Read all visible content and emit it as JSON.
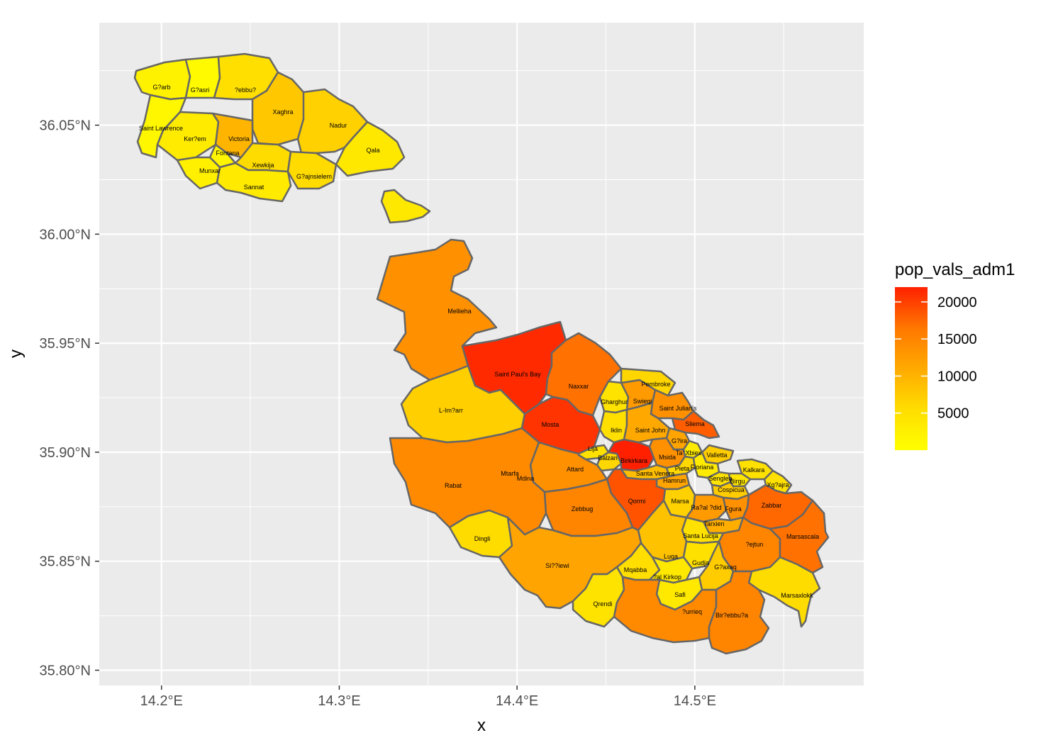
{
  "chart_data": {
    "type": "choropleth",
    "legend": {
      "title": "pop_vals_adm1",
      "breaks": [
        5000,
        10000,
        15000,
        20000
      ],
      "break_labels": [
        "5000",
        "10000",
        "15000",
        "20000"
      ],
      "range": [
        0,
        22000
      ],
      "low_color": "#FFFF00",
      "high_color": "#FF2000",
      "placement": "right"
    },
    "x_axis": {
      "title": "x",
      "ticks": [
        14.2,
        14.3,
        14.4,
        14.5
      ],
      "tick_labels": [
        "14.2°E",
        "14.3°E",
        "14.4°E",
        "14.5°E"
      ],
      "range": [
        14.165,
        14.595
      ]
    },
    "y_axis": {
      "title": "y",
      "ticks": [
        35.8,
        35.85,
        35.9,
        35.95,
        36.0,
        36.05
      ],
      "tick_labels": [
        "35.80°N",
        "35.85°N",
        "35.90°N",
        "35.95°N",
        "36.00°N",
        "36.05°N"
      ],
      "range": [
        35.793,
        36.097
      ]
    },
    "panel_background": "#EBEBEB",
    "grid": true,
    "regions": [
      {
        "name": "G?arb",
        "value": 1300
      },
      {
        "name": "G?asri",
        "value": 500
      },
      {
        "name": "?ebbu?",
        "value": 3200
      },
      {
        "name": "Xaghra",
        "value": 5500
      },
      {
        "name": "Nadur",
        "value": 4500
      },
      {
        "name": "Qala",
        "value": 2300
      },
      {
        "name": "Saint Lawrence",
        "value": 800
      },
      {
        "name": "Ker?em",
        "value": 2000
      },
      {
        "name": "Victoria",
        "value": 7300
      },
      {
        "name": "Fontana",
        "value": 1000
      },
      {
        "name": "Munxar",
        "value": 1500
      },
      {
        "name": "Xewkija",
        "value": 3500
      },
      {
        "name": "G?ajnsielem",
        "value": 3600
      },
      {
        "name": "Sannat",
        "value": 2100
      },
      {
        "name": "Mellieha",
        "value": 11000
      },
      {
        "name": "Saint Paul's Bay",
        "value": 21000
      },
      {
        "name": "Naxxar",
        "value": 14000
      },
      {
        "name": "L-Im?arr",
        "value": 4700
      },
      {
        "name": "Mosta",
        "value": 20000
      },
      {
        "name": "Gharghur",
        "value": 2800
      },
      {
        "name": "Swieqi",
        "value": 10000
      },
      {
        "name": "Pembroke",
        "value": 4000
      },
      {
        "name": "Saint Julian's",
        "value": 11000
      },
      {
        "name": "Iklin",
        "value": 3200
      },
      {
        "name": "Saint John",
        "value": 8500
      },
      {
        "name": "Sliema",
        "value": 16000
      },
      {
        "name": "Lija",
        "value": 3000
      },
      {
        "name": "Balzan",
        "value": 3900
      },
      {
        "name": "Birkirkara",
        "value": 22000
      },
      {
        "name": "G?ira",
        "value": 9000
      },
      {
        "name": "Ta' Xbiex",
        "value": 2000
      },
      {
        "name": "Msida",
        "value": 11000
      },
      {
        "name": "Valletta",
        "value": 5000
      },
      {
        "name": "Santa Venera",
        "value": 6500
      },
      {
        "name": "Pieta",
        "value": 3800
      },
      {
        "name": "Floriana",
        "value": 2000
      },
      {
        "name": "Hamrun",
        "value": 9000
      },
      {
        "name": "Kalkara",
        "value": 3000
      },
      {
        "name": "Xg?ajra",
        "value": 3100
      },
      {
        "name": "Senglea",
        "value": 2800
      },
      {
        "name": "Birgu",
        "value": 2600
      },
      {
        "name": "Cospicua",
        "value": 5000
      },
      {
        "name": "Attard",
        "value": 11000
      },
      {
        "name": "Mtarfa",
        "value": 2600
      },
      {
        "name": "Mdina",
        "value": 300
      },
      {
        "name": "Rabat",
        "value": 11500
      },
      {
        "name": "Qormi",
        "value": 17000
      },
      {
        "name": "Marsa",
        "value": 4500
      },
      {
        "name": "Ra?al ?did",
        "value": 10000
      },
      {
        "name": "Fgura",
        "value": 11000
      },
      {
        "name": "Zabbar",
        "value": 15000
      },
      {
        "name": "Zebbug",
        "value": 12000
      },
      {
        "name": "Tarxien",
        "value": 8000
      },
      {
        "name": "Dingli",
        "value": 3500
      },
      {
        "name": "Santa Lucija",
        "value": 3000
      },
      {
        "name": "?ejtun",
        "value": 12000
      },
      {
        "name": "Marsascala",
        "value": 14000
      },
      {
        "name": "Luqa",
        "value": 6000
      },
      {
        "name": "Gudja",
        "value": 3000
      },
      {
        "name": "G?axaq",
        "value": 5000
      },
      {
        "name": "Si??iewi",
        "value": 9000
      },
      {
        "name": "Mqabba",
        "value": 3300
      },
      {
        "name": "?al Kirkop",
        "value": 2300
      },
      {
        "name": "Marsaxlokk",
        "value": 3500
      },
      {
        "name": "Safi",
        "value": 2200
      },
      {
        "name": "Qrendi",
        "value": 2800
      },
      {
        "name": "?urrieq",
        "value": 11500
      },
      {
        "name": "Bir?ebbu?a",
        "value": 12000
      }
    ]
  }
}
